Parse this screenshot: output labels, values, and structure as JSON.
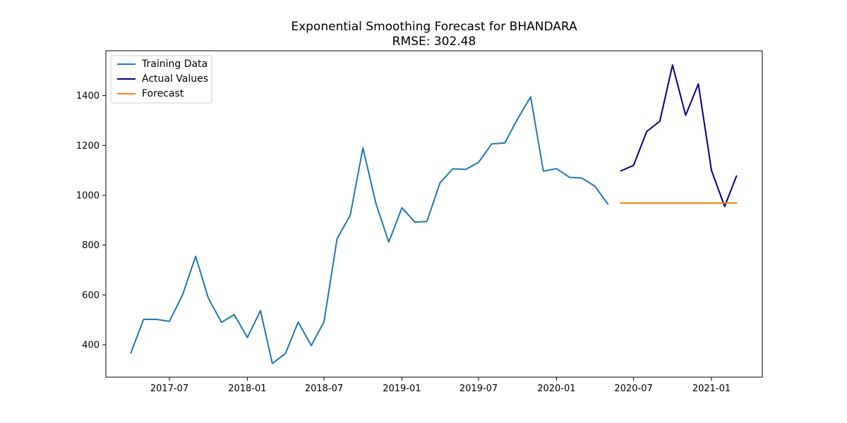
{
  "chart_data": {
    "type": "line",
    "title": "Exponential Smoothing Forecast for BHANDARA",
    "subtitle": "RMSE: 302.48",
    "xlabel": "",
    "ylabel": "",
    "x_ticks": [
      "2017-07",
      "2018-01",
      "2018-07",
      "2019-01",
      "2019-07",
      "2020-01",
      "2020-07",
      "2021-01"
    ],
    "y_ticks": [
      400,
      600,
      800,
      1000,
      1200,
      1400
    ],
    "xlim": [
      "2017-02-01",
      "2021-05-01"
    ],
    "ylim": [
      270,
      1580
    ],
    "legend": {
      "placement": "top-left",
      "entries": [
        "Training Data",
        "Actual Values",
        "Forecast"
      ]
    },
    "series": [
      {
        "name": "Training Data",
        "color": "#1f77b4",
        "x": [
          "2017-04",
          "2017-05",
          "2017-06",
          "2017-07",
          "2017-08",
          "2017-09",
          "2017-10",
          "2017-11",
          "2017-12",
          "2018-01",
          "2018-02",
          "2018-03",
          "2018-04",
          "2018-05",
          "2018-06",
          "2018-07",
          "2018-08",
          "2018-09",
          "2018-10",
          "2018-11",
          "2018-12",
          "2019-01",
          "2019-02",
          "2019-03",
          "2019-04",
          "2019-05",
          "2019-06",
          "2019-07",
          "2019-08",
          "2019-09",
          "2019-10",
          "2019-11",
          "2019-12",
          "2020-01",
          "2020-02",
          "2020-03",
          "2020-04",
          "2020-05"
        ],
        "values": [
          367,
          502,
          502,
          494,
          600,
          755,
          587,
          490,
          521,
          429,
          537,
          325,
          365,
          491,
          397,
          492,
          826,
          920,
          1190,
          965,
          812,
          950,
          892,
          895,
          1050,
          1106,
          1104,
          1132,
          1206,
          1210,
          1306,
          1395,
          1097,
          1107,
          1072,
          1069,
          1036,
          965
        ]
      },
      {
        "name": "Actual Values",
        "color": "#00007f",
        "x": [
          "2020-06",
          "2020-07",
          "2020-08",
          "2020-09",
          "2020-10",
          "2020-11",
          "2020-12",
          "2021-01",
          "2021-02",
          "2021-03"
        ],
        "values": [
          1098,
          1120,
          1256,
          1297,
          1523,
          1321,
          1447,
          1100,
          955,
          1077
        ]
      },
      {
        "name": "Forecast",
        "color": "#ff7f0e",
        "x": [
          "2020-06",
          "2020-07",
          "2020-08",
          "2020-09",
          "2020-10",
          "2020-11",
          "2020-12",
          "2021-01",
          "2021-02",
          "2021-03"
        ],
        "values": [
          969,
          969,
          969,
          969,
          969,
          969,
          969,
          969,
          969,
          969
        ]
      }
    ],
    "grid": false
  }
}
